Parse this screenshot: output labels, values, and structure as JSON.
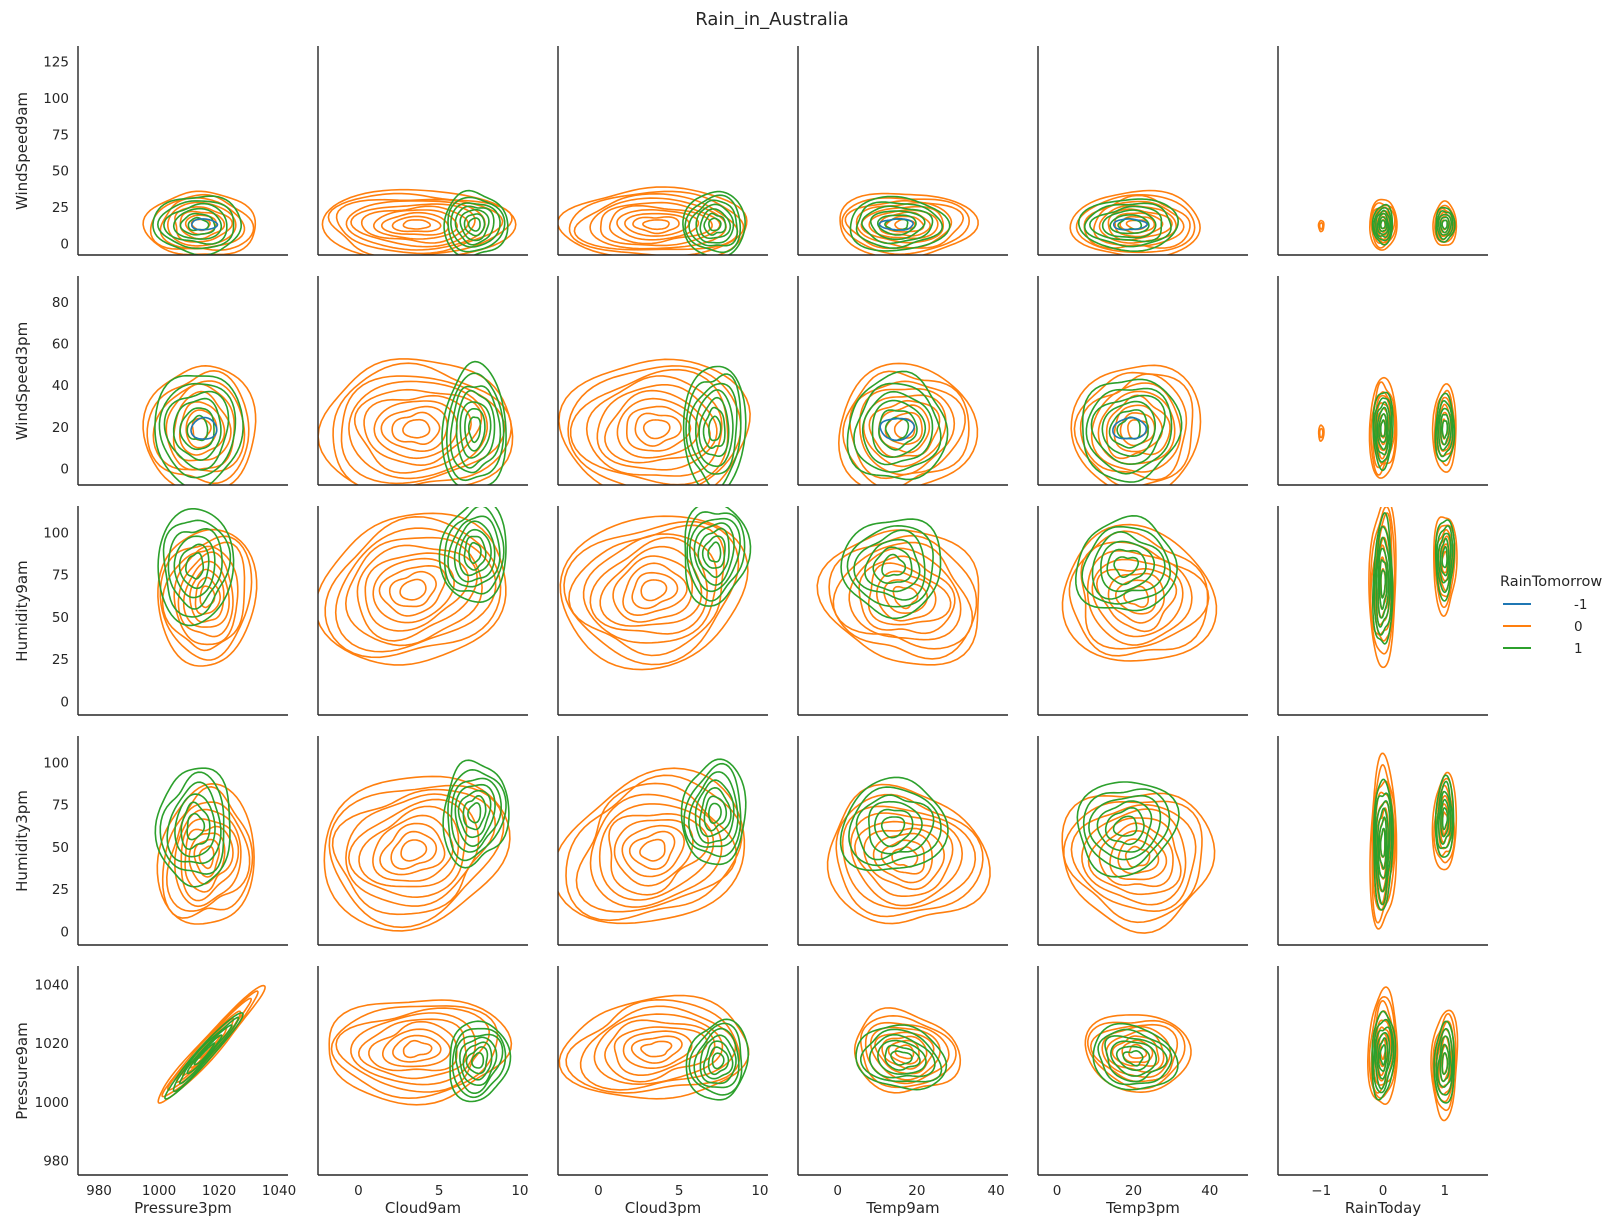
{
  "chart_data": {
    "type": "kde-contour-pairgrid",
    "title": "Rain_in_Australia",
    "legend": {
      "title": "RainTomorrow",
      "placement": "right",
      "entries": [
        {
          "label": "-1",
          "color": "#1f77b4"
        },
        {
          "label": "0",
          "color": "#ff7f0e"
        },
        {
          "label": "1",
          "color": "#2ca02c"
        }
      ]
    },
    "x_variables": [
      {
        "name": "Pressure3pm",
        "range": [
          973,
          1043
        ],
        "ticks": [
          980,
          1000,
          1020,
          1040
        ]
      },
      {
        "name": "Cloud9am",
        "range": [
          -2.5,
          10.5
        ],
        "ticks": [
          0,
          5,
          10
        ]
      },
      {
        "name": "Cloud3pm",
        "range": [
          -2.5,
          10.5
        ],
        "ticks": [
          0,
          5,
          10
        ]
      },
      {
        "name": "Temp9am",
        "range": [
          -10,
          43
        ],
        "ticks": [
          0,
          20,
          40
        ]
      },
      {
        "name": "Temp3pm",
        "range": [
          -5,
          50
        ],
        "ticks": [
          0,
          20,
          40
        ]
      },
      {
        "name": "RainToday",
        "range": [
          -1.7,
          1.7
        ],
        "ticks": [
          -1,
          0,
          1
        ],
        "tick_labels": [
          "−1",
          "0",
          "1"
        ]
      }
    ],
    "y_variables": [
      {
        "name": "WindSpeed9am",
        "range": [
          -8,
          135
        ],
        "ticks": [
          0,
          25,
          50,
          75,
          100,
          125
        ]
      },
      {
        "name": "WindSpeed3pm",
        "range": [
          -8,
          92
        ],
        "ticks": [
          0,
          20,
          40,
          60,
          80
        ]
      },
      {
        "name": "Humidity9am",
        "range": [
          -8,
          115
        ],
        "ticks": [
          0,
          25,
          50,
          75,
          100
        ]
      },
      {
        "name": "Humidity3pm",
        "range": [
          -8,
          115
        ],
        "ticks": [
          0,
          25,
          50,
          75,
          100
        ]
      },
      {
        "name": "Pressure9am",
        "range": [
          975,
          1046
        ],
        "ticks": [
          980,
          1000,
          1020,
          1040
        ]
      }
    ]
  }
}
